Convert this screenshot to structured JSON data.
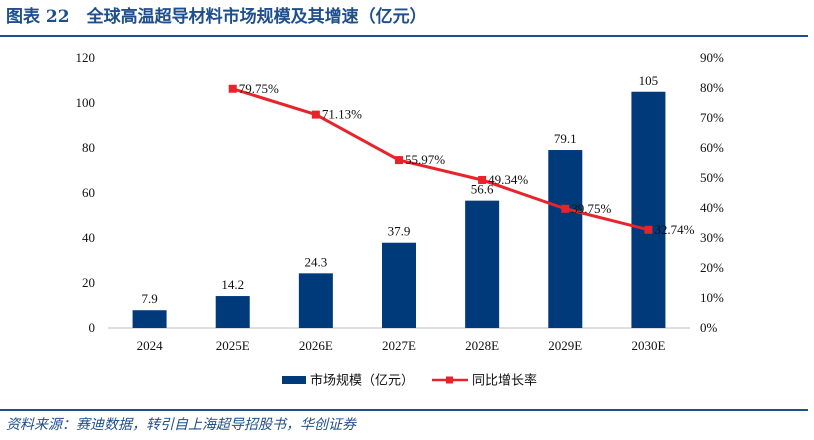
{
  "title": "图表 22　全球高温超导材料市场规模及其增速（亿元）",
  "source": "资料来源：赛迪数据，转引自上海超导招股书，华创证券",
  "colors": {
    "bar": "#003a7a",
    "line": "#e8232a",
    "title": "#1f4e8c"
  },
  "chart_data": {
    "type": "bar",
    "categories": [
      "2024",
      "2025E",
      "2026E",
      "2027E",
      "2028E",
      "2029E",
      "2030E"
    ],
    "series": [
      {
        "name": "市场规模（亿元）",
        "type": "bar",
        "axis": "left",
        "values": [
          7.9,
          14.2,
          24.3,
          37.9,
          56.6,
          79.1,
          105
        ],
        "labels": [
          "7.9",
          "14.2",
          "24.3",
          "37.9",
          "56.6",
          "79.1",
          "105"
        ]
      },
      {
        "name": "同比增长率",
        "type": "line",
        "axis": "right",
        "values": [
          null,
          79.75,
          71.13,
          55.97,
          49.34,
          39.75,
          32.74
        ],
        "labels": [
          "",
          "79.75%",
          "71.13%",
          "55.97%",
          "49.34%",
          "39.75%",
          "32.74%"
        ]
      }
    ],
    "y_left": {
      "min": 0,
      "max": 120,
      "ticks": [
        "0",
        "20",
        "40",
        "60",
        "80",
        "100",
        "120"
      ]
    },
    "y_right": {
      "min": 0,
      "max": 90,
      "ticks": [
        "0%",
        "10%",
        "20%",
        "30%",
        "40%",
        "50%",
        "60%",
        "70%",
        "80%",
        "90%"
      ]
    },
    "grid": false,
    "legend_position": "bottom"
  }
}
